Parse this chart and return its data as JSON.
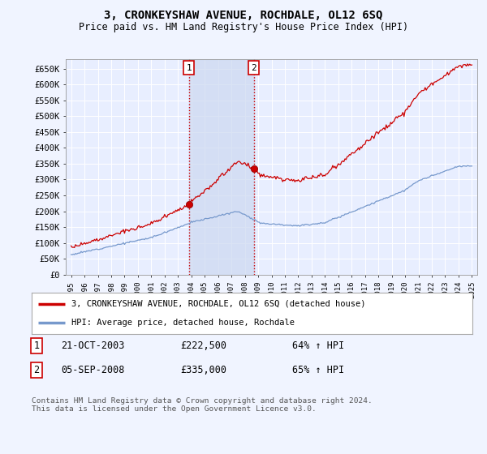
{
  "title": "3, CRONKEYSHAW AVENUE, ROCHDALE, OL12 6SQ",
  "subtitle": "Price paid vs. HM Land Registry's House Price Index (HPI)",
  "ylabel_ticks": [
    "£0",
    "£50K",
    "£100K",
    "£150K",
    "£200K",
    "£250K",
    "£300K",
    "£350K",
    "£400K",
    "£450K",
    "£500K",
    "£550K",
    "£600K",
    "£650K"
  ],
  "ytick_values": [
    0,
    50000,
    100000,
    150000,
    200000,
    250000,
    300000,
    350000,
    400000,
    450000,
    500000,
    550000,
    600000,
    650000
  ],
  "ylim": [
    0,
    680000
  ],
  "background_color": "#f0f4ff",
  "plot_bg_color": "#e8eeff",
  "grid_color": "#ffffff",
  "transaction1": {
    "date_num": 2003.81,
    "price": 222500,
    "label": "1",
    "date_str": "21-OCT-2003",
    "price_str": "£222,500",
    "hpi_str": "64% ↑ HPI"
  },
  "transaction2": {
    "date_num": 2008.68,
    "price": 335000,
    "label": "2",
    "date_str": "05-SEP-2008",
    "price_str": "£335,000",
    "hpi_str": "65% ↑ HPI"
  },
  "legend_line1": "3, CRONKEYSHAW AVENUE, ROCHDALE, OL12 6SQ (detached house)",
  "legend_line2": "HPI: Average price, detached house, Rochdale",
  "footnote": "Contains HM Land Registry data © Crown copyright and database right 2024.\nThis data is licensed under the Open Government Licence v3.0.",
  "line_color_red": "#cc0000",
  "line_color_blue": "#7799cc",
  "shade_color": "#ccd8f0",
  "vline_color": "#cc0000",
  "xlim_start": 1994.6,
  "xlim_end": 2025.4
}
